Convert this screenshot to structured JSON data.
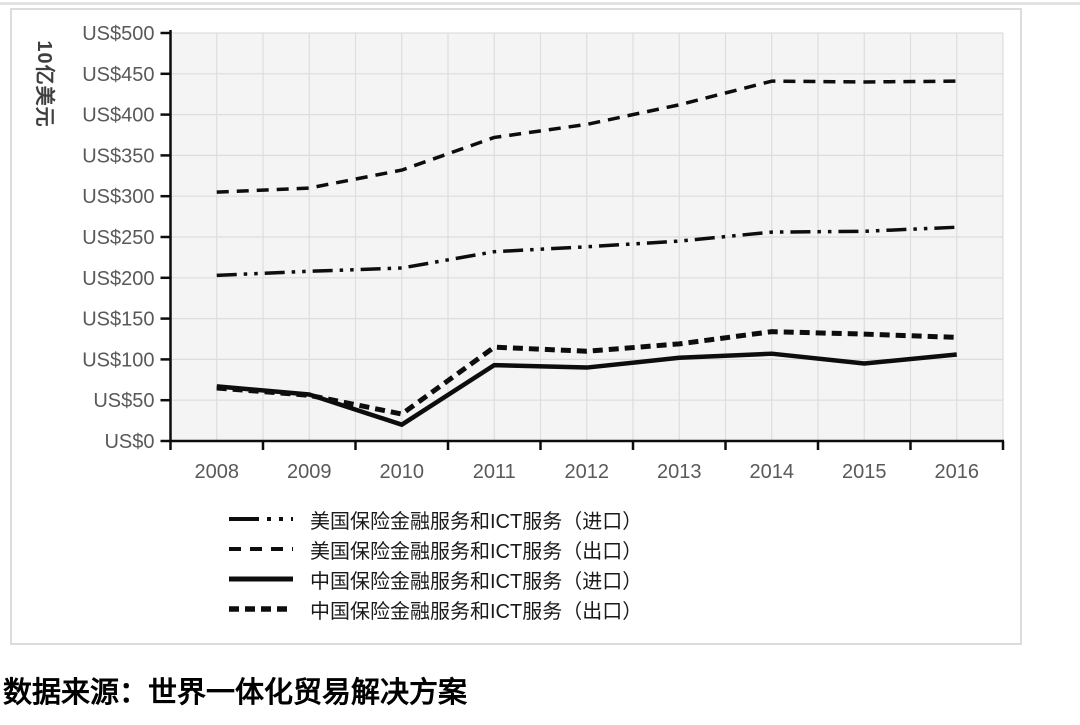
{
  "chart_data": {
    "type": "line",
    "title": "",
    "ylabel": "10亿美元",
    "xlabel": "",
    "ylim": [
      0,
      500
    ],
    "y_tick_step": 50,
    "y_ticks": [
      "US$0",
      "US$50",
      "US$100",
      "US$150",
      "US$200",
      "US$250",
      "US$300",
      "US$350",
      "US$400",
      "US$450",
      "US$500"
    ],
    "categories": [
      "2008",
      "2009",
      "2010",
      "2011",
      "2012",
      "2013",
      "2014",
      "2015",
      "2016"
    ],
    "series": [
      {
        "name": "美国保险金融服务和ICT服务（进口）",
        "line_style": "dash-dot-dot",
        "values": [
          203,
          208,
          212,
          232,
          238,
          245,
          256,
          257,
          262
        ]
      },
      {
        "name": "美国保险金融服务和ICT服务（出口）",
        "line_style": "dashed",
        "values": [
          305,
          310,
          332,
          372,
          388,
          412,
          441,
          440,
          441
        ]
      },
      {
        "name": "中国保险金融服务和ICT服务（进口）",
        "line_style": "solid",
        "values": [
          67,
          57,
          20,
          93,
          90,
          102,
          107,
          95,
          106
        ]
      },
      {
        "name": "中国保险金融服务和ICT服务（出口）",
        "line_style": "bold-dashed",
        "values": [
          65,
          56,
          33,
          115,
          110,
          119,
          134,
          131,
          127
        ]
      }
    ],
    "legend_position": "bottom",
    "grid": true,
    "line_color": "#0d0d0d",
    "plot_bg": "#f4f4f4",
    "grid_color": "#dddddd",
    "tick_label_color": "#595959"
  },
  "source_note": "数据来源：世界一体化贸易解决方案"
}
